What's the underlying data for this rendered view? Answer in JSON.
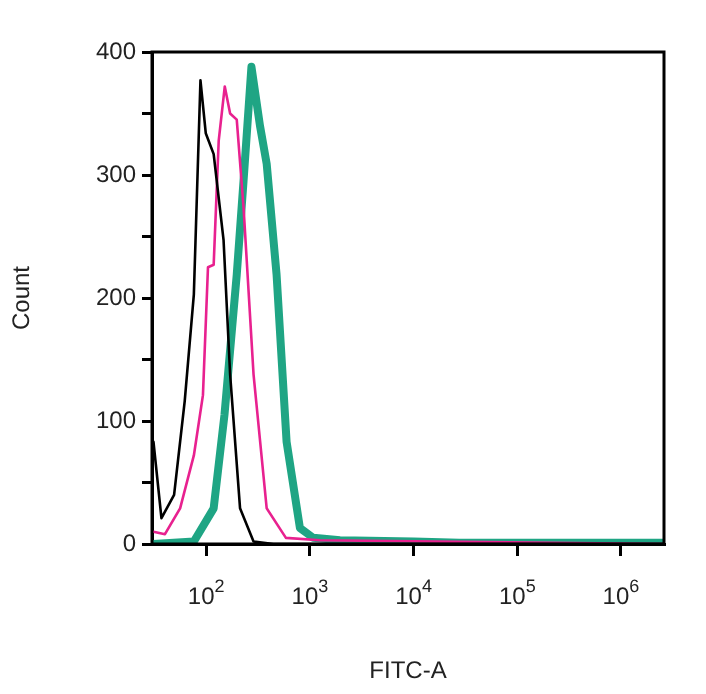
{
  "chart_data": {
    "type": "line",
    "xlabel": "FITC-A",
    "ylabel": "Count",
    "log": "x",
    "grid": false,
    "marker": "none",
    "line_style": "solid",
    "xlim": [
      30,
      2600000
    ],
    "ylim": [
      0,
      400
    ],
    "xticks": [
      {
        "value": 100,
        "label": "10$^{2}$"
      },
      {
        "value": 1000,
        "label": "10$^{3}$"
      },
      {
        "value": 10000,
        "label": "10$^{4}$"
      },
      {
        "value": 100000,
        "label": "10$^{5}$"
      },
      {
        "value": 1000000,
        "label": "10$^{6}$"
      }
    ],
    "yticks": [
      0,
      {
        "value": 50,
        "label": null
      },
      100,
      {
        "value": 150,
        "label": null
      },
      200,
      {
        "value": 250,
        "label": null
      },
      300,
      {
        "value": 350,
        "label": null
      },
      400
    ],
    "series": [
      {
        "color": "#000000",
        "x": [
          31,
          37,
          49,
          62,
          76,
          88,
          99,
          118,
          147,
          170,
          212,
          286,
          445,
          2600000
        ],
        "values": [
          83,
          21,
          40,
          116,
          203,
          377,
          334,
          317,
          247,
          138,
          29,
          2,
          0,
          0
        ]
      },
      {
        "color": "#e8218f",
        "x": [
          31,
          40,
          56,
          76,
          93,
          104,
          118,
          132,
          151,
          170,
          197,
          229,
          286,
          383,
          587,
          1250,
          2600000
        ],
        "values": [
          10,
          8,
          29,
          72,
          121,
          225,
          227,
          328,
          372,
          350,
          345,
          274,
          138,
          29,
          5,
          3,
          0
        ]
      },
      {
        "color": "#1fa584",
        "x": [
          31,
          76,
          118,
          150,
          197,
          229,
          273,
          330,
          383,
          477,
          596,
          801,
          1078,
          1950,
          10000,
          27500,
          2600000
        ],
        "values": [
          0,
          2,
          29,
          105,
          219,
          295,
          388,
          340,
          309,
          219,
          83,
          13,
          5,
          3,
          2,
          1,
          1
        ]
      }
    ]
  }
}
